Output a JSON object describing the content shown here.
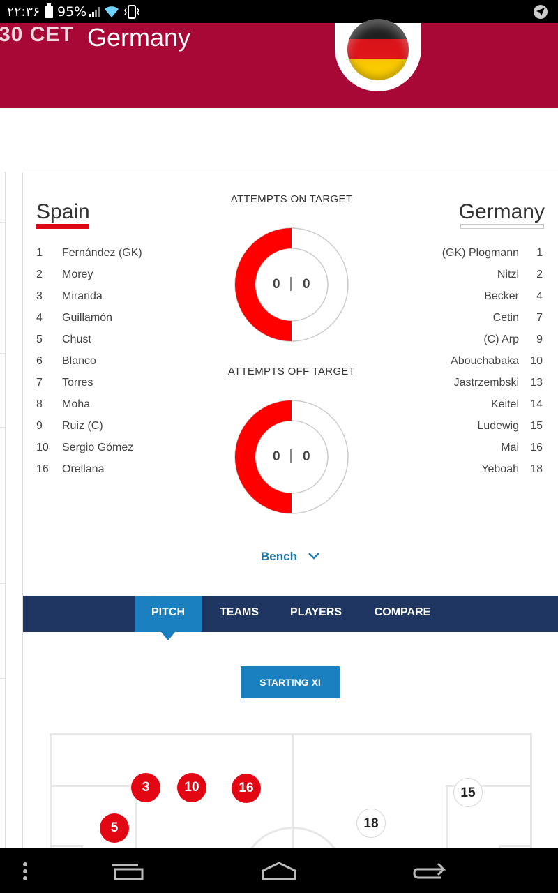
{
  "status_bar": {
    "time": "۲۲:۳۶",
    "battery": "95%"
  },
  "header": {
    "match_time": "30 CET",
    "team": "Germany"
  },
  "lineups": {
    "home": {
      "name": "Spain",
      "players": [
        {
          "number": "1",
          "name": "Fernández (GK)"
        },
        {
          "number": "2",
          "name": "Morey"
        },
        {
          "number": "3",
          "name": "Miranda"
        },
        {
          "number": "4",
          "name": "Guillamón"
        },
        {
          "number": "5",
          "name": "Chust"
        },
        {
          "number": "6",
          "name": "Blanco"
        },
        {
          "number": "7",
          "name": "Torres"
        },
        {
          "number": "8",
          "name": "Moha"
        },
        {
          "number": "9",
          "name": "Ruiz (C)"
        },
        {
          "number": "10",
          "name": "Sergio Gómez"
        },
        {
          "number": "16",
          "name": "Orellana"
        }
      ]
    },
    "away": {
      "name": "Germany",
      "players": [
        {
          "number": "1",
          "name": "(GK) Plogmann"
        },
        {
          "number": "2",
          "name": "Nitzl"
        },
        {
          "number": "4",
          "name": "Becker"
        },
        {
          "number": "7",
          "name": "Cetin"
        },
        {
          "number": "9",
          "name": "(C) Arp"
        },
        {
          "number": "10",
          "name": "Abouchabaka"
        },
        {
          "number": "13",
          "name": "Jastrzembski"
        },
        {
          "number": "14",
          "name": "Keitel"
        },
        {
          "number": "15",
          "name": "Ludewig"
        },
        {
          "number": "16",
          "name": "Mai"
        },
        {
          "number": "18",
          "name": "Yeboah"
        }
      ]
    }
  },
  "stats": {
    "on_target": {
      "title": "ATTEMPTS ON TARGET",
      "home": "0",
      "away": "0"
    },
    "off_target": {
      "title": "ATTEMPTS OFF TARGET",
      "home": "0",
      "away": "0"
    }
  },
  "bench_label": "Bench",
  "tabs": {
    "pitch": "PITCH",
    "teams": "TEAMS",
    "players": "PLAYERS",
    "compare": "COMPARE",
    "active": "PITCH"
  },
  "starting_xi_label": "STARTING XI",
  "pitch": {
    "home_markers": [
      "3",
      "10",
      "16",
      "5"
    ],
    "away_markers": [
      "15",
      "18"
    ]
  },
  "colors": {
    "brand": "#a80835",
    "home_accent": "#e30613",
    "tab_bar": "#1e3661",
    "tab_active": "#1a80bf",
    "link": "#1a7ab0"
  }
}
